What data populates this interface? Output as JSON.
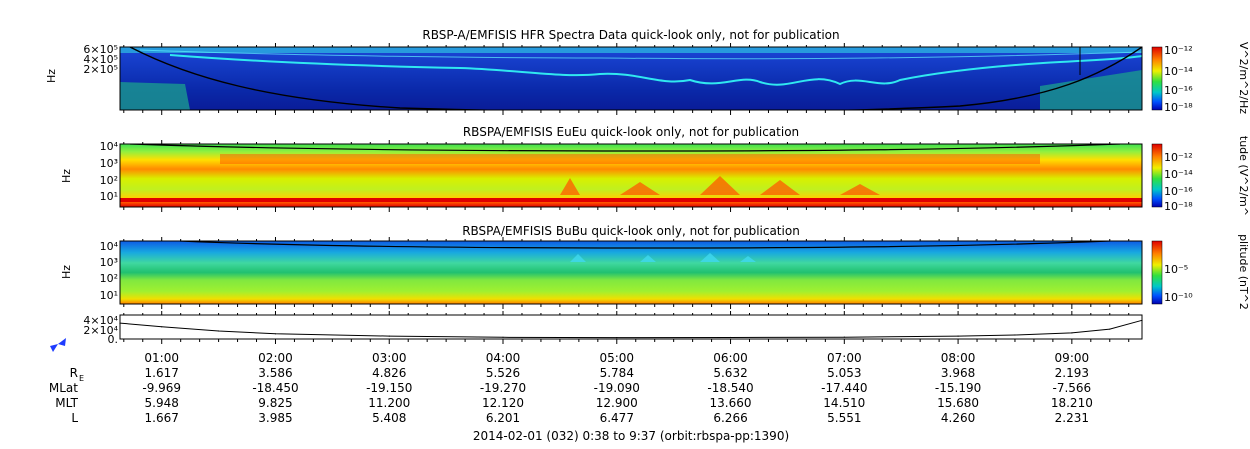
{
  "chart_data": [
    {
      "type": "heatmap",
      "title": "RBSP-A/EMFISIS  HFR Spectra Data quick-look only, not for publication",
      "ylabel": "Hz",
      "yticks": [
        "6×10⁵",
        "4×10⁵",
        "2×10⁵"
      ],
      "colorbar_label": "V^2/m^2/Hz",
      "colorbar_ticks": [
        "10⁻¹²",
        "10⁻¹⁴",
        "10⁻¹⁶",
        "10⁻¹⁸"
      ]
    },
    {
      "type": "heatmap",
      "title": "RBSPA/EMFISIS  EuEu quick-look only, not for publication",
      "ylabel": "Hz",
      "yticks": [
        "10⁴",
        "10³",
        "10²",
        "10¹"
      ],
      "colorbar_label": "tude (V^2/m^",
      "colorbar_ticks": [
        "10⁻¹²",
        "10⁻¹⁴",
        "10⁻¹⁶",
        "10⁻¹⁸"
      ]
    },
    {
      "type": "heatmap",
      "title": "RBSPA/EMFISIS  BuBu quick-look only, not for publication",
      "ylabel": "Hz",
      "yticks": [
        "10⁴",
        "10³",
        "10²",
        "10¹"
      ],
      "colorbar_label": "plitude (nT^2",
      "colorbar_ticks": [
        "10⁻⁵",
        "10⁻¹⁰"
      ]
    },
    {
      "type": "line",
      "yticks": [
        "4×10⁴",
        "2×10⁴",
        "0."
      ],
      "x": [
        "00:38",
        "01:00",
        "01:30",
        "02:00",
        "03:00",
        "04:00",
        "05:00",
        "06:00",
        "07:00",
        "08:00",
        "08:30",
        "09:00",
        "09:20",
        "09:37"
      ],
      "y": [
        32000,
        24000,
        15000,
        9000,
        4000,
        1500,
        800,
        1000,
        1800,
        4000,
        6500,
        11000,
        19000,
        38000
      ]
    }
  ],
  "time_axis": {
    "ticks": [
      "01:00",
      "02:00",
      "03:00",
      "04:00",
      "05:00",
      "06:00",
      "07:00",
      "08:00",
      "09:00"
    ],
    "ephemeris": [
      {
        "label": "R",
        "sub": "E",
        "values": [
          "1.617",
          "3.586",
          "4.826",
          "5.526",
          "5.784",
          "5.632",
          "5.053",
          "3.968",
          "2.193"
        ]
      },
      {
        "label": "MLat",
        "sub": "",
        "values": [
          "-9.969",
          "-18.450",
          "-19.150",
          "-19.270",
          "-19.090",
          "-18.540",
          "-17.440",
          "-15.190",
          "-7.566"
        ]
      },
      {
        "label": "MLT",
        "sub": "",
        "values": [
          "5.948",
          "9.825",
          "11.200",
          "12.120",
          "12.900",
          "13.660",
          "14.510",
          "15.680",
          "18.210"
        ]
      },
      {
        "label": "L",
        "sub": "",
        "values": [
          "1.667",
          "3.985",
          "5.408",
          "6.201",
          "6.477",
          "6.266",
          "5.551",
          "4.260",
          "2.231"
        ]
      }
    ],
    "footer": "2014-02-01 (032) 0:38 to 9:37 (orbit:rbspa-pp:1390)"
  },
  "colors": {
    "spectrum_low": "#0a1aa0",
    "spectrum_high": "#e60000",
    "nav_arrows": "#1e3cff"
  }
}
